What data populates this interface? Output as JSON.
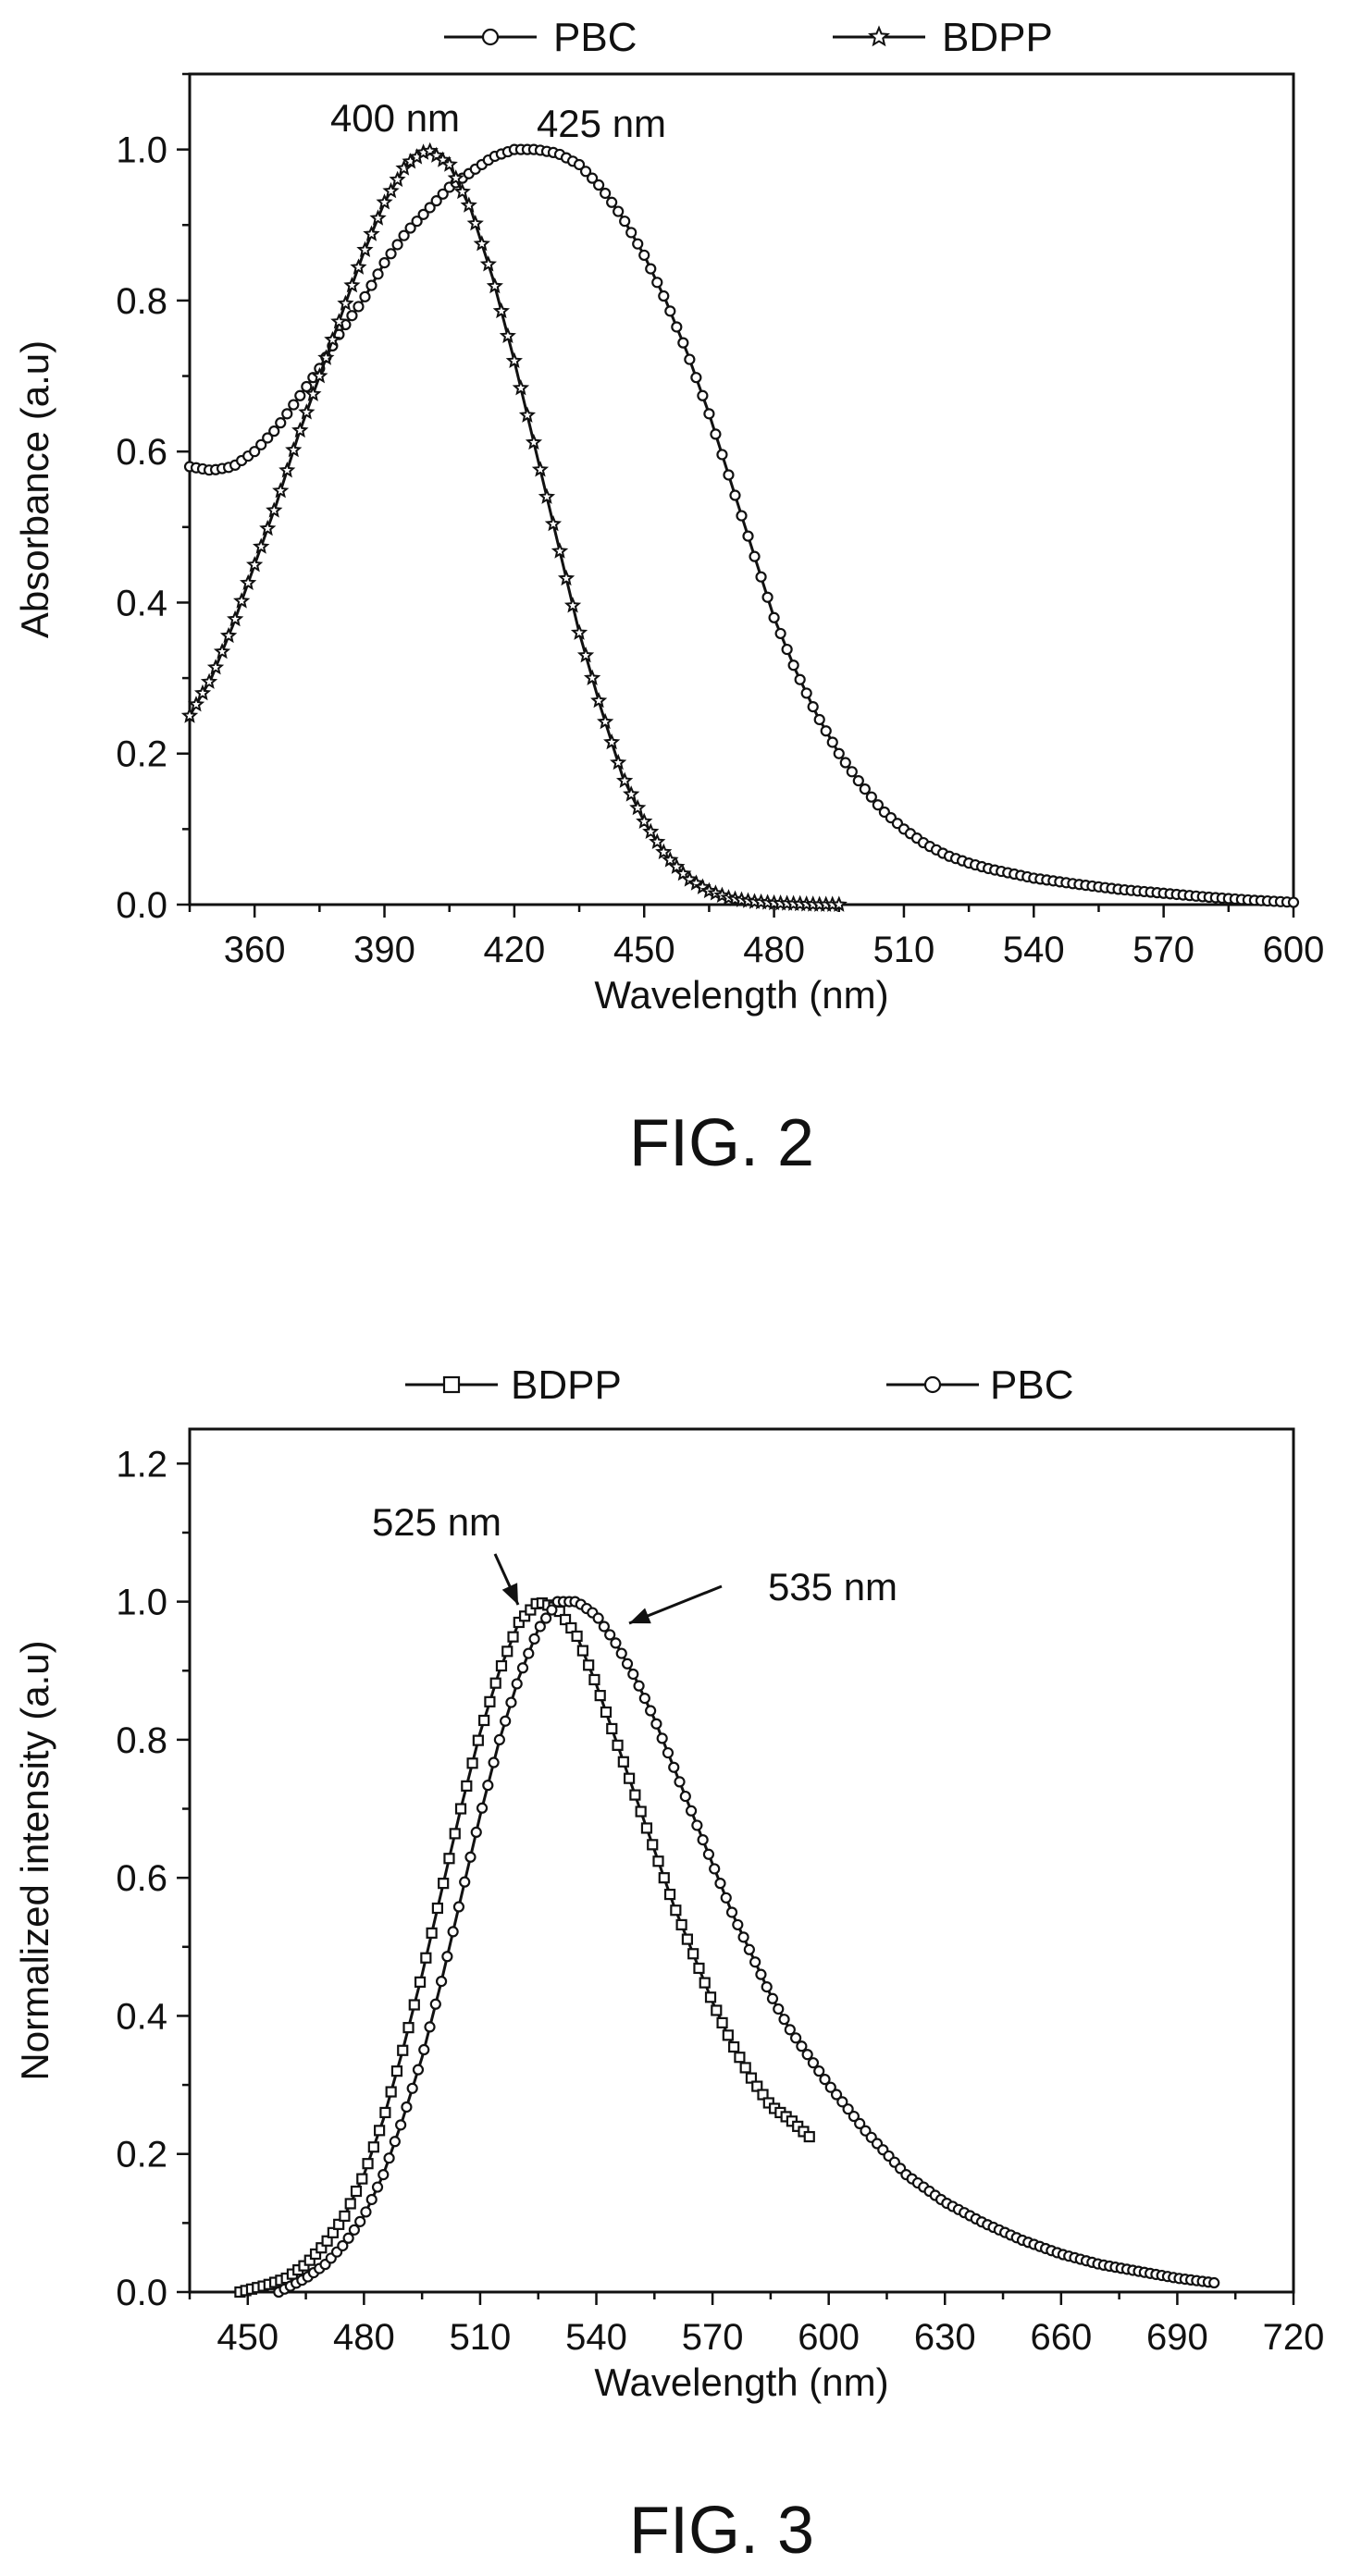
{
  "figures": [
    {
      "caption": "FIG. 2"
    },
    {
      "caption": "FIG. 3"
    }
  ],
  "colors": {
    "ink": "#111111"
  },
  "chart_data": [
    {
      "type": "line",
      "title": "",
      "xlabel": "Wavelength (nm)",
      "ylabel": "Absorbance (a.u)",
      "xlim": [
        345,
        600
      ],
      "ylim": [
        0,
        1.1
      ],
      "xticks": [
        360,
        390,
        420,
        450,
        480,
        510,
        540,
        570,
        600
      ],
      "yticks": [
        0.0,
        0.2,
        0.4,
        0.6,
        0.8,
        1.0
      ],
      "x_tick_labels": [
        "360",
        "390",
        "420",
        "450",
        "480",
        "510",
        "540",
        "570",
        "600"
      ],
      "y_tick_labels": [
        "0.0",
        "0.2",
        "0.4",
        "0.6",
        "0.8",
        "1.0"
      ],
      "legend": {
        "position": "top",
        "entries": [
          {
            "name": "PBC",
            "marker": "circle"
          },
          {
            "name": "BDPP",
            "marker": "star"
          }
        ]
      },
      "annotations": [
        {
          "text": "400 nm",
          "x": 400
        },
        {
          "text": "425 nm",
          "x": 425
        }
      ],
      "grid": false,
      "series": [
        {
          "name": "PBC",
          "marker": "circle",
          "x": [
            345,
            350,
            355,
            360,
            365,
            370,
            375,
            380,
            385,
            390,
            395,
            400,
            405,
            410,
            415,
            420,
            425,
            430,
            435,
            440,
            445,
            450,
            455,
            460,
            465,
            470,
            475,
            480,
            485,
            490,
            495,
            500,
            505,
            510,
            515,
            520,
            525,
            530,
            540,
            550,
            560,
            570,
            580,
            590,
            600
          ],
          "y": [
            0.58,
            0.575,
            0.58,
            0.6,
            0.63,
            0.67,
            0.71,
            0.76,
            0.8,
            0.85,
            0.89,
            0.92,
            0.95,
            0.97,
            0.99,
            1.0,
            1.0,
            0.995,
            0.98,
            0.95,
            0.91,
            0.86,
            0.8,
            0.73,
            0.65,
            0.56,
            0.47,
            0.38,
            0.31,
            0.25,
            0.2,
            0.16,
            0.125,
            0.1,
            0.08,
            0.065,
            0.055,
            0.047,
            0.035,
            0.027,
            0.02,
            0.015,
            0.01,
            0.006,
            0.003
          ]
        },
        {
          "name": "BDPP",
          "marker": "star",
          "x": [
            345,
            350,
            355,
            360,
            365,
            370,
            375,
            380,
            385,
            390,
            395,
            400,
            405,
            410,
            415,
            420,
            425,
            430,
            435,
            440,
            445,
            450,
            455,
            460,
            465,
            470,
            475,
            480,
            485,
            490,
            495
          ],
          "y": [
            0.25,
            0.3,
            0.37,
            0.45,
            0.53,
            0.62,
            0.7,
            0.78,
            0.86,
            0.93,
            0.98,
            1.0,
            0.98,
            0.92,
            0.83,
            0.72,
            0.6,
            0.48,
            0.36,
            0.26,
            0.17,
            0.11,
            0.065,
            0.035,
            0.018,
            0.008,
            0.004,
            0.002,
            0.001,
            0.0,
            0.0
          ]
        }
      ]
    },
    {
      "type": "line",
      "title": "",
      "xlabel": "Wavelength (nm)",
      "ylabel": "Normalized intensity (a.u)",
      "xlim": [
        435,
        720
      ],
      "ylim": [
        0,
        1.25
      ],
      "xticks": [
        450,
        480,
        510,
        540,
        570,
        600,
        630,
        660,
        690,
        720
      ],
      "yticks": [
        0.0,
        0.2,
        0.4,
        0.6,
        0.8,
        1.0,
        1.2
      ],
      "x_tick_labels": [
        "450",
        "480",
        "510",
        "540",
        "570",
        "600",
        "630",
        "660",
        "690",
        "720"
      ],
      "y_tick_labels": [
        "0.0",
        "0.2",
        "0.4",
        "0.6",
        "0.8",
        "1.0",
        "1.2"
      ],
      "legend": {
        "position": "top",
        "entries": [
          {
            "name": "BDPP",
            "marker": "square"
          },
          {
            "name": "PBC",
            "marker": "circle"
          }
        ]
      },
      "annotations": [
        {
          "text": "525 nm",
          "x": 525
        },
        {
          "text": "535 nm",
          "x": 535
        }
      ],
      "grid": false,
      "series": [
        {
          "name": "BDPP",
          "marker": "square",
          "x": [
            448,
            455,
            460,
            465,
            470,
            475,
            480,
            485,
            490,
            495,
            500,
            505,
            510,
            515,
            520,
            525,
            530,
            535,
            540,
            545,
            550,
            555,
            560,
            565,
            570,
            575,
            580,
            585,
            590,
            595
          ],
          "y": [
            0.0,
            0.01,
            0.02,
            0.04,
            0.07,
            0.11,
            0.17,
            0.25,
            0.35,
            0.46,
            0.58,
            0.7,
            0.81,
            0.9,
            0.97,
            1.0,
            0.99,
            0.95,
            0.88,
            0.8,
            0.72,
            0.64,
            0.56,
            0.49,
            0.42,
            0.36,
            0.31,
            0.27,
            0.25,
            0.225
          ]
        },
        {
          "name": "PBC",
          "marker": "circle",
          "x": [
            458,
            465,
            470,
            475,
            480,
            485,
            490,
            495,
            500,
            505,
            510,
            515,
            520,
            525,
            530,
            535,
            540,
            545,
            550,
            555,
            560,
            565,
            570,
            575,
            580,
            585,
            590,
            595,
            600,
            610,
            620,
            630,
            640,
            650,
            660,
            670,
            680,
            690,
            700
          ],
          "y": [
            0.0,
            0.02,
            0.04,
            0.07,
            0.11,
            0.17,
            0.25,
            0.34,
            0.45,
            0.57,
            0.69,
            0.8,
            0.89,
            0.96,
            1.0,
            1.0,
            0.98,
            0.94,
            0.89,
            0.83,
            0.76,
            0.69,
            0.62,
            0.55,
            0.49,
            0.43,
            0.38,
            0.34,
            0.3,
            0.23,
            0.17,
            0.13,
            0.1,
            0.075,
            0.055,
            0.04,
            0.03,
            0.02,
            0.013
          ]
        }
      ]
    }
  ]
}
